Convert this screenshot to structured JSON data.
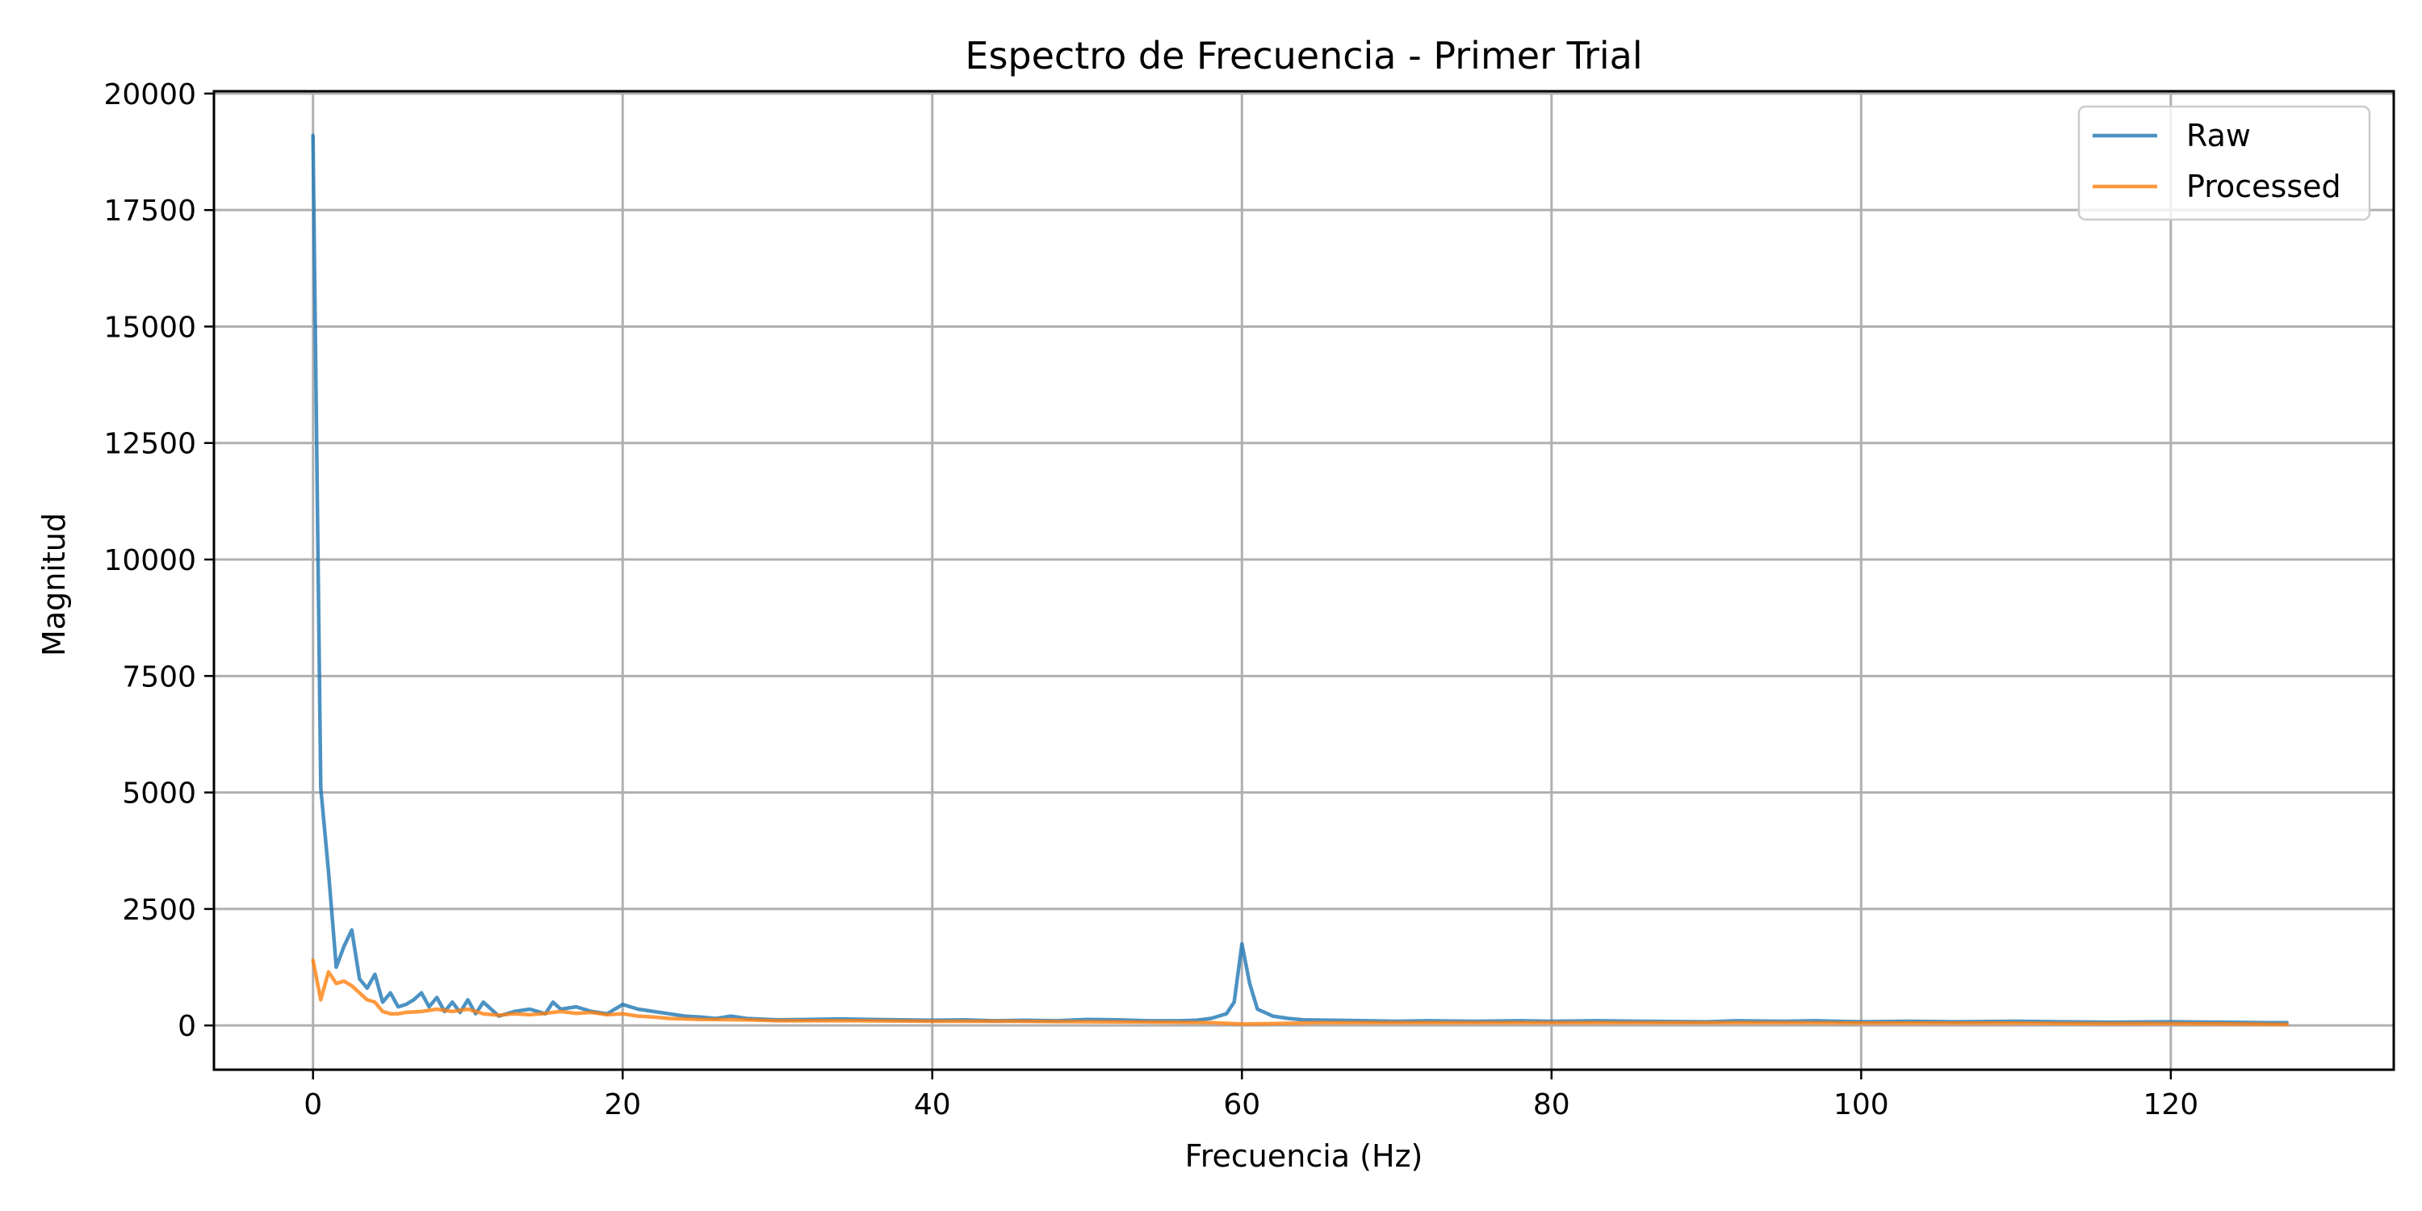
{
  "chart_data": {
    "type": "line",
    "title": "Espectro de Frecuencia - Primer Trial",
    "xlabel": "Frecuencia (Hz)",
    "ylabel": "Magnitud",
    "xlim": [
      -6.4,
      134.4
    ],
    "ylim": [
      -950,
      20050
    ],
    "xticks": [
      0,
      20,
      40,
      60,
      80,
      100,
      120
    ],
    "xtick_labels": [
      "0",
      "20",
      "40",
      "60",
      "80",
      "100",
      "120"
    ],
    "yticks": [
      0,
      2500,
      5000,
      7500,
      10000,
      12500,
      15000,
      17500,
      20000
    ],
    "ytick_labels": [
      "0",
      "2500",
      "5000",
      "7500",
      "10000",
      "12500",
      "15000",
      "17500",
      "20000"
    ],
    "grid": true,
    "legend_position": "upper-right",
    "series": [
      {
        "name": "Raw",
        "color": "#1f77b4",
        "x": [
          0,
          0.5,
          1.0,
          1.5,
          2.0,
          2.5,
          3.0,
          3.5,
          4.0,
          4.5,
          5.0,
          5.5,
          6.0,
          6.5,
          7.0,
          7.5,
          8.0,
          8.5,
          9.0,
          9.5,
          10.0,
          10.5,
          11.0,
          12.0,
          13.0,
          14.0,
          15.0,
          15.5,
          16.0,
          17.0,
          18.0,
          19.0,
          20.0,
          21.0,
          22.0,
          23.0,
          24.0,
          25.0,
          26.0,
          27.0,
          28.0,
          30.0,
          32.0,
          34.0,
          36.0,
          38.0,
          40.0,
          42.0,
          44.0,
          46.0,
          48.0,
          50.0,
          52.0,
          54.0,
          56.0,
          57.0,
          58.0,
          58.5,
          59.0,
          59.5,
          60.0,
          60.5,
          61.0,
          62.0,
          63.0,
          64.0,
          66.0,
          68.0,
          70.0,
          72.0,
          75.0,
          78.0,
          80.0,
          83.0,
          86.0,
          90.0,
          92.0,
          95.0,
          97.0,
          100.0,
          103.0,
          106.0,
          110.0,
          113.0,
          116.0,
          120.0,
          123.0,
          126.0,
          127.5
        ],
        "y": [
          19100,
          5100,
          3300,
          1250,
          1700,
          2050,
          1000,
          800,
          1100,
          500,
          700,
          400,
          450,
          550,
          700,
          400,
          600,
          300,
          500,
          280,
          550,
          250,
          500,
          200,
          300,
          350,
          250,
          500,
          350,
          400,
          300,
          250,
          450,
          350,
          300,
          250,
          200,
          180,
          150,
          200,
          150,
          120,
          130,
          140,
          130,
          120,
          110,
          120,
          100,
          110,
          100,
          130,
          120,
          100,
          100,
          110,
          150,
          200,
          250,
          500,
          1750,
          900,
          350,
          200,
          150,
          120,
          110,
          100,
          90,
          100,
          90,
          100,
          90,
          100,
          90,
          80,
          100,
          90,
          100,
          80,
          90,
          80,
          90,
          80,
          70,
          80,
          70,
          60,
          60
        ]
      },
      {
        "name": "Processed",
        "color": "#ff7f0e",
        "x": [
          0,
          0.5,
          1.0,
          1.5,
          2.0,
          2.5,
          3.0,
          3.5,
          4.0,
          4.5,
          5.0,
          5.5,
          6.0,
          7.0,
          8.0,
          9.0,
          10.0,
          11.0,
          12.0,
          13.0,
          14.0,
          15.0,
          16.0,
          17.0,
          18.0,
          19.0,
          20.0,
          21.0,
          22.0,
          23.0,
          25.0,
          28.0,
          30.0,
          35.0,
          40.0,
          45.0,
          50.0,
          55.0,
          58.0,
          60.0,
          62.0,
          65.0,
          70.0,
          75.0,
          80.0,
          85.0,
          90.0,
          95.0,
          100.0,
          105.0,
          110.0,
          115.0,
          120.0,
          125.0,
          127.5
        ],
        "y": [
          1400,
          550,
          1150,
          900,
          950,
          850,
          700,
          550,
          500,
          300,
          250,
          250,
          280,
          300,
          350,
          300,
          350,
          250,
          220,
          250,
          230,
          260,
          300,
          260,
          280,
          230,
          250,
          200,
          180,
          150,
          130,
          120,
          100,
          100,
          90,
          90,
          80,
          70,
          60,
          30,
          40,
          60,
          60,
          60,
          60,
          60,
          60,
          60,
          50,
          50,
          50,
          40,
          40,
          30,
          20
        ]
      }
    ]
  }
}
